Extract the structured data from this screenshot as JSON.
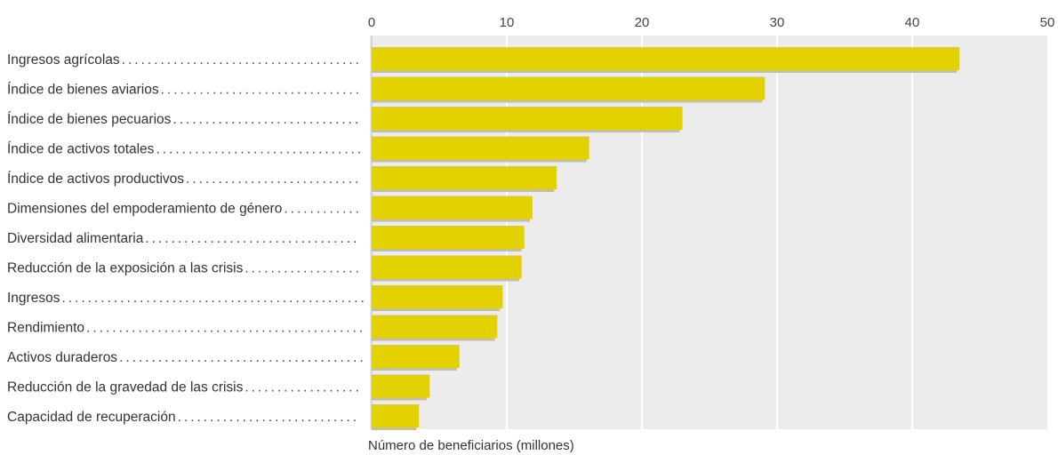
{
  "chart_data": {
    "type": "bar",
    "orientation": "horizontal",
    "categories": [
      "Ingresos agrícolas",
      "Índice de bienes aviarios",
      "Índice de bienes pecuarios",
      "Índice de activos totales",
      "Índice de activos productivos",
      "Dimensiones del empoderamiento de género",
      "Diversidad alimentaria",
      "Reducción de la exposición a las crisis",
      "Ingresos",
      "Rendimiento",
      "Activos duraderos",
      "Reducción de la gravedad de las crisis",
      "Capacidad de recuperación"
    ],
    "values": [
      43.5,
      29.1,
      23.0,
      16.1,
      13.7,
      11.9,
      11.3,
      11.1,
      9.7,
      9.3,
      6.5,
      4.3,
      3.5
    ],
    "xlabel": "Número de beneficiarios (millones)",
    "xlim": [
      0,
      50
    ],
    "xticks": [
      "0",
      "10",
      "20",
      "30",
      "40",
      "50"
    ],
    "grid": true,
    "bar_color": "#e3d200",
    "shadow_color": "#bdbdbd",
    "plot_background": "#ececec"
  }
}
